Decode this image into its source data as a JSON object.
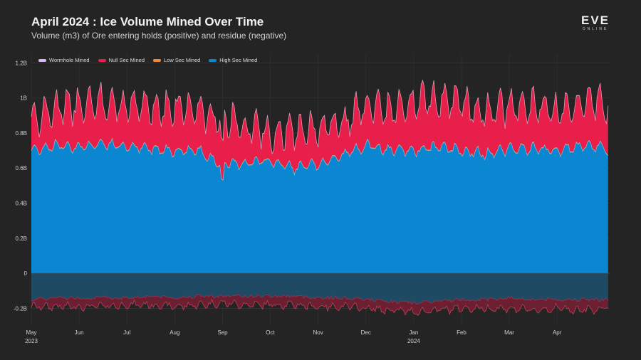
{
  "header": {
    "title": "April 2024 : Ice Volume Mined Over Time",
    "subtitle": "Volume (m3) of Ore entering holds (positive) and residue (negative)"
  },
  "logo": {
    "main": "EVE",
    "sub": "ONLINE"
  },
  "colors": {
    "background": "#242424",
    "wormhole": "#d7b9f5",
    "nullsec": "#e81e4b",
    "lowsec": "#f0883a",
    "highsec": "#0a87d0",
    "residue_high": "#1f4a63",
    "residue_null": "#6b1f31"
  },
  "chart_data": {
    "type": "area",
    "title": "April 2024 : Ice Volume Mined Over Time",
    "subtitle": "Volume (m3) of Ore entering holds (positive) and residue (negative)",
    "xlabel": "",
    "ylabel": "",
    "ylim": [
      -0.3,
      1.25
    ],
    "y_unit": "B m3",
    "y_ticks": [
      {
        "value": 1.2,
        "label": "1.2B"
      },
      {
        "value": 1.0,
        "label": "1B"
      },
      {
        "value": 0.8,
        "label": "0.8B"
      },
      {
        "value": 0.6,
        "label": "0.6B"
      },
      {
        "value": 0.4,
        "label": "0.4B"
      },
      {
        "value": 0.2,
        "label": "0.2B"
      },
      {
        "value": 0,
        "label": "0"
      },
      {
        "value": -0.2,
        "label": "-0.2B"
      }
    ],
    "x_ticks": [
      {
        "month": 0,
        "label": "May",
        "sublabel": "2023"
      },
      {
        "month": 1,
        "label": "Jun",
        "sublabel": ""
      },
      {
        "month": 2,
        "label": "Jul",
        "sublabel": ""
      },
      {
        "month": 3,
        "label": "Aug",
        "sublabel": ""
      },
      {
        "month": 4,
        "label": "Sep",
        "sublabel": ""
      },
      {
        "month": 5,
        "label": "Oct",
        "sublabel": ""
      },
      {
        "month": 6,
        "label": "Nov",
        "sublabel": ""
      },
      {
        "month": 7,
        "label": "Dec",
        "sublabel": ""
      },
      {
        "month": 8,
        "label": "Jan",
        "sublabel": "2024"
      },
      {
        "month": 9,
        "label": "Feb",
        "sublabel": ""
      },
      {
        "month": 10,
        "label": "Mar",
        "sublabel": ""
      },
      {
        "month": 11,
        "label": "Apr",
        "sublabel": ""
      }
    ],
    "x_range_months": [
      0,
      12.1
    ],
    "stacked": true,
    "legend_placement": "top-left",
    "series_monthly_approx_B": {
      "x_month": [
        0,
        0.5,
        1,
        1.5,
        2,
        2.5,
        3,
        3.5,
        4,
        4.5,
        5,
        5.5,
        6,
        6.5,
        7,
        7.5,
        8,
        8.5,
        9,
        9.5,
        10,
        10.5,
        11,
        11.5,
        12,
        12.1
      ],
      "high_sec": [
        0.7,
        0.73,
        0.72,
        0.74,
        0.72,
        0.71,
        0.7,
        0.7,
        0.62,
        0.63,
        0.64,
        0.6,
        0.62,
        0.67,
        0.73,
        0.7,
        0.7,
        0.72,
        0.7,
        0.68,
        0.71,
        0.71,
        0.7,
        0.72,
        0.72,
        0.66
      ],
      "null_sec": [
        0.18,
        0.2,
        0.24,
        0.22,
        0.23,
        0.22,
        0.25,
        0.22,
        0.25,
        0.2,
        0.15,
        0.2,
        0.2,
        0.17,
        0.22,
        0.22,
        0.28,
        0.27,
        0.26,
        0.23,
        0.25,
        0.24,
        0.22,
        0.25,
        0.24,
        0.26
      ],
      "low_sec": [
        0.005,
        0.005,
        0.005,
        0.005,
        0.005,
        0.005,
        0.005,
        0.005,
        0.005,
        0.005,
        0.005,
        0.005,
        0.005,
        0.005,
        0.005,
        0.005,
        0.005,
        0.005,
        0.005,
        0.005,
        0.005,
        0.005,
        0.005,
        0.005,
        0.005,
        0.005
      ],
      "wormhole": [
        0.003,
        0.003,
        0.003,
        0.003,
        0.003,
        0.003,
        0.003,
        0.003,
        0.003,
        0.003,
        0.003,
        0.003,
        0.003,
        0.003,
        0.003,
        0.003,
        0.003,
        0.003,
        0.003,
        0.003,
        0.003,
        0.003,
        0.003,
        0.003,
        0.003,
        0.003
      ],
      "residue_high": [
        -0.15,
        -0.14,
        -0.14,
        -0.14,
        -0.14,
        -0.13,
        -0.14,
        -0.13,
        -0.13,
        -0.13,
        -0.13,
        -0.13,
        -0.14,
        -0.14,
        -0.15,
        -0.16,
        -0.17,
        -0.16,
        -0.15,
        -0.15,
        -0.14,
        -0.15,
        -0.15,
        -0.15,
        -0.15,
        -0.15
      ],
      "residue_null": [
        -0.19,
        -0.19,
        -0.19,
        -0.19,
        -0.18,
        -0.18,
        -0.19,
        -0.18,
        -0.17,
        -0.18,
        -0.18,
        -0.18,
        -0.19,
        -0.19,
        -0.2,
        -0.21,
        -0.22,
        -0.21,
        -0.2,
        -0.2,
        -0.2,
        -0.21,
        -0.2,
        -0.21,
        -0.2,
        -0.2
      ]
    },
    "legend": [
      {
        "name": "Wormhole Mined",
        "color": "#d7b9f5"
      },
      {
        "name": "Null Sec Mined",
        "color": "#e81e4b"
      },
      {
        "name": "Low Sec Mined",
        "color": "#f0883a"
      },
      {
        "name": "High Sec Mined",
        "color": "#0a87d0"
      }
    ]
  }
}
